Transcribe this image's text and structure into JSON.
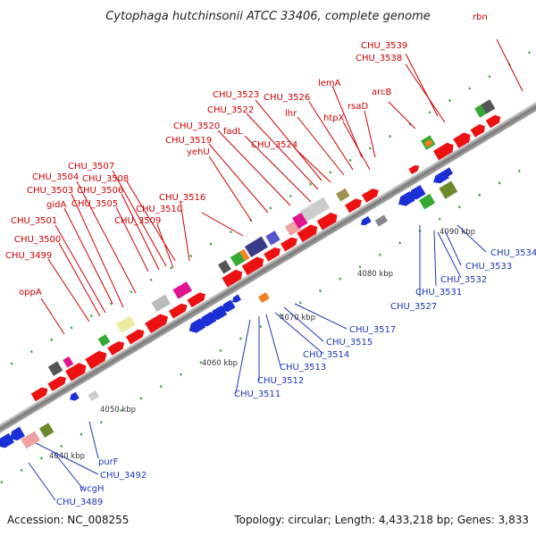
{
  "title": "Cytophaga hutchinsonii ATCC 33406, complete genome",
  "footer": {
    "accession": "Accession: NC_008255",
    "topology": "Topology: circular; Length: 4,433,218 bp; Genes: 3,833"
  },
  "scale_labels": [
    "4040 kbp",
    "4050 kbp",
    "4060 kbp",
    "4070 kbp",
    "4080 kbp",
    "4090 kbp"
  ],
  "labels_forward": [
    "rbn",
    "CHU_3539",
    "CHU_3538",
    "lemA",
    "arcB",
    "CHU_3523",
    "CHU_3526",
    "CHU_3522",
    "rsaD",
    "htpX",
    "lhr",
    "CHU_3520",
    "fadL",
    "CHU_3524",
    "CHU_3519",
    "yehU",
    "CHU_3507",
    "CHU_3504",
    "CHU_3508",
    "CHU_3503",
    "CHU_3506",
    "CHU_3516",
    "gidA",
    "CHU_3505",
    "CHU_3510",
    "CHU_3501",
    "CHU_3509",
    "CHU_3500",
    "CHU_3499",
    "oppA"
  ],
  "labels_reverse": [
    "CHU_3534",
    "CHU_3533",
    "CHU_3532",
    "CHU_3531",
    "CHU_3527",
    "CHU_3517",
    "CHU_3515",
    "CHU_3514",
    "CHU_3513",
    "CHU_3512",
    "CHU_3511",
    "purF",
    "CHU_3492",
    "wcgH",
    "CHU_3489"
  ],
  "colors": {
    "forward_label": "#cc0000",
    "reverse_label": "#1f35b5",
    "forward_gene": "#ee1111",
    "reverse_gene": "#1a2fd6",
    "backbone": "#888888"
  }
}
